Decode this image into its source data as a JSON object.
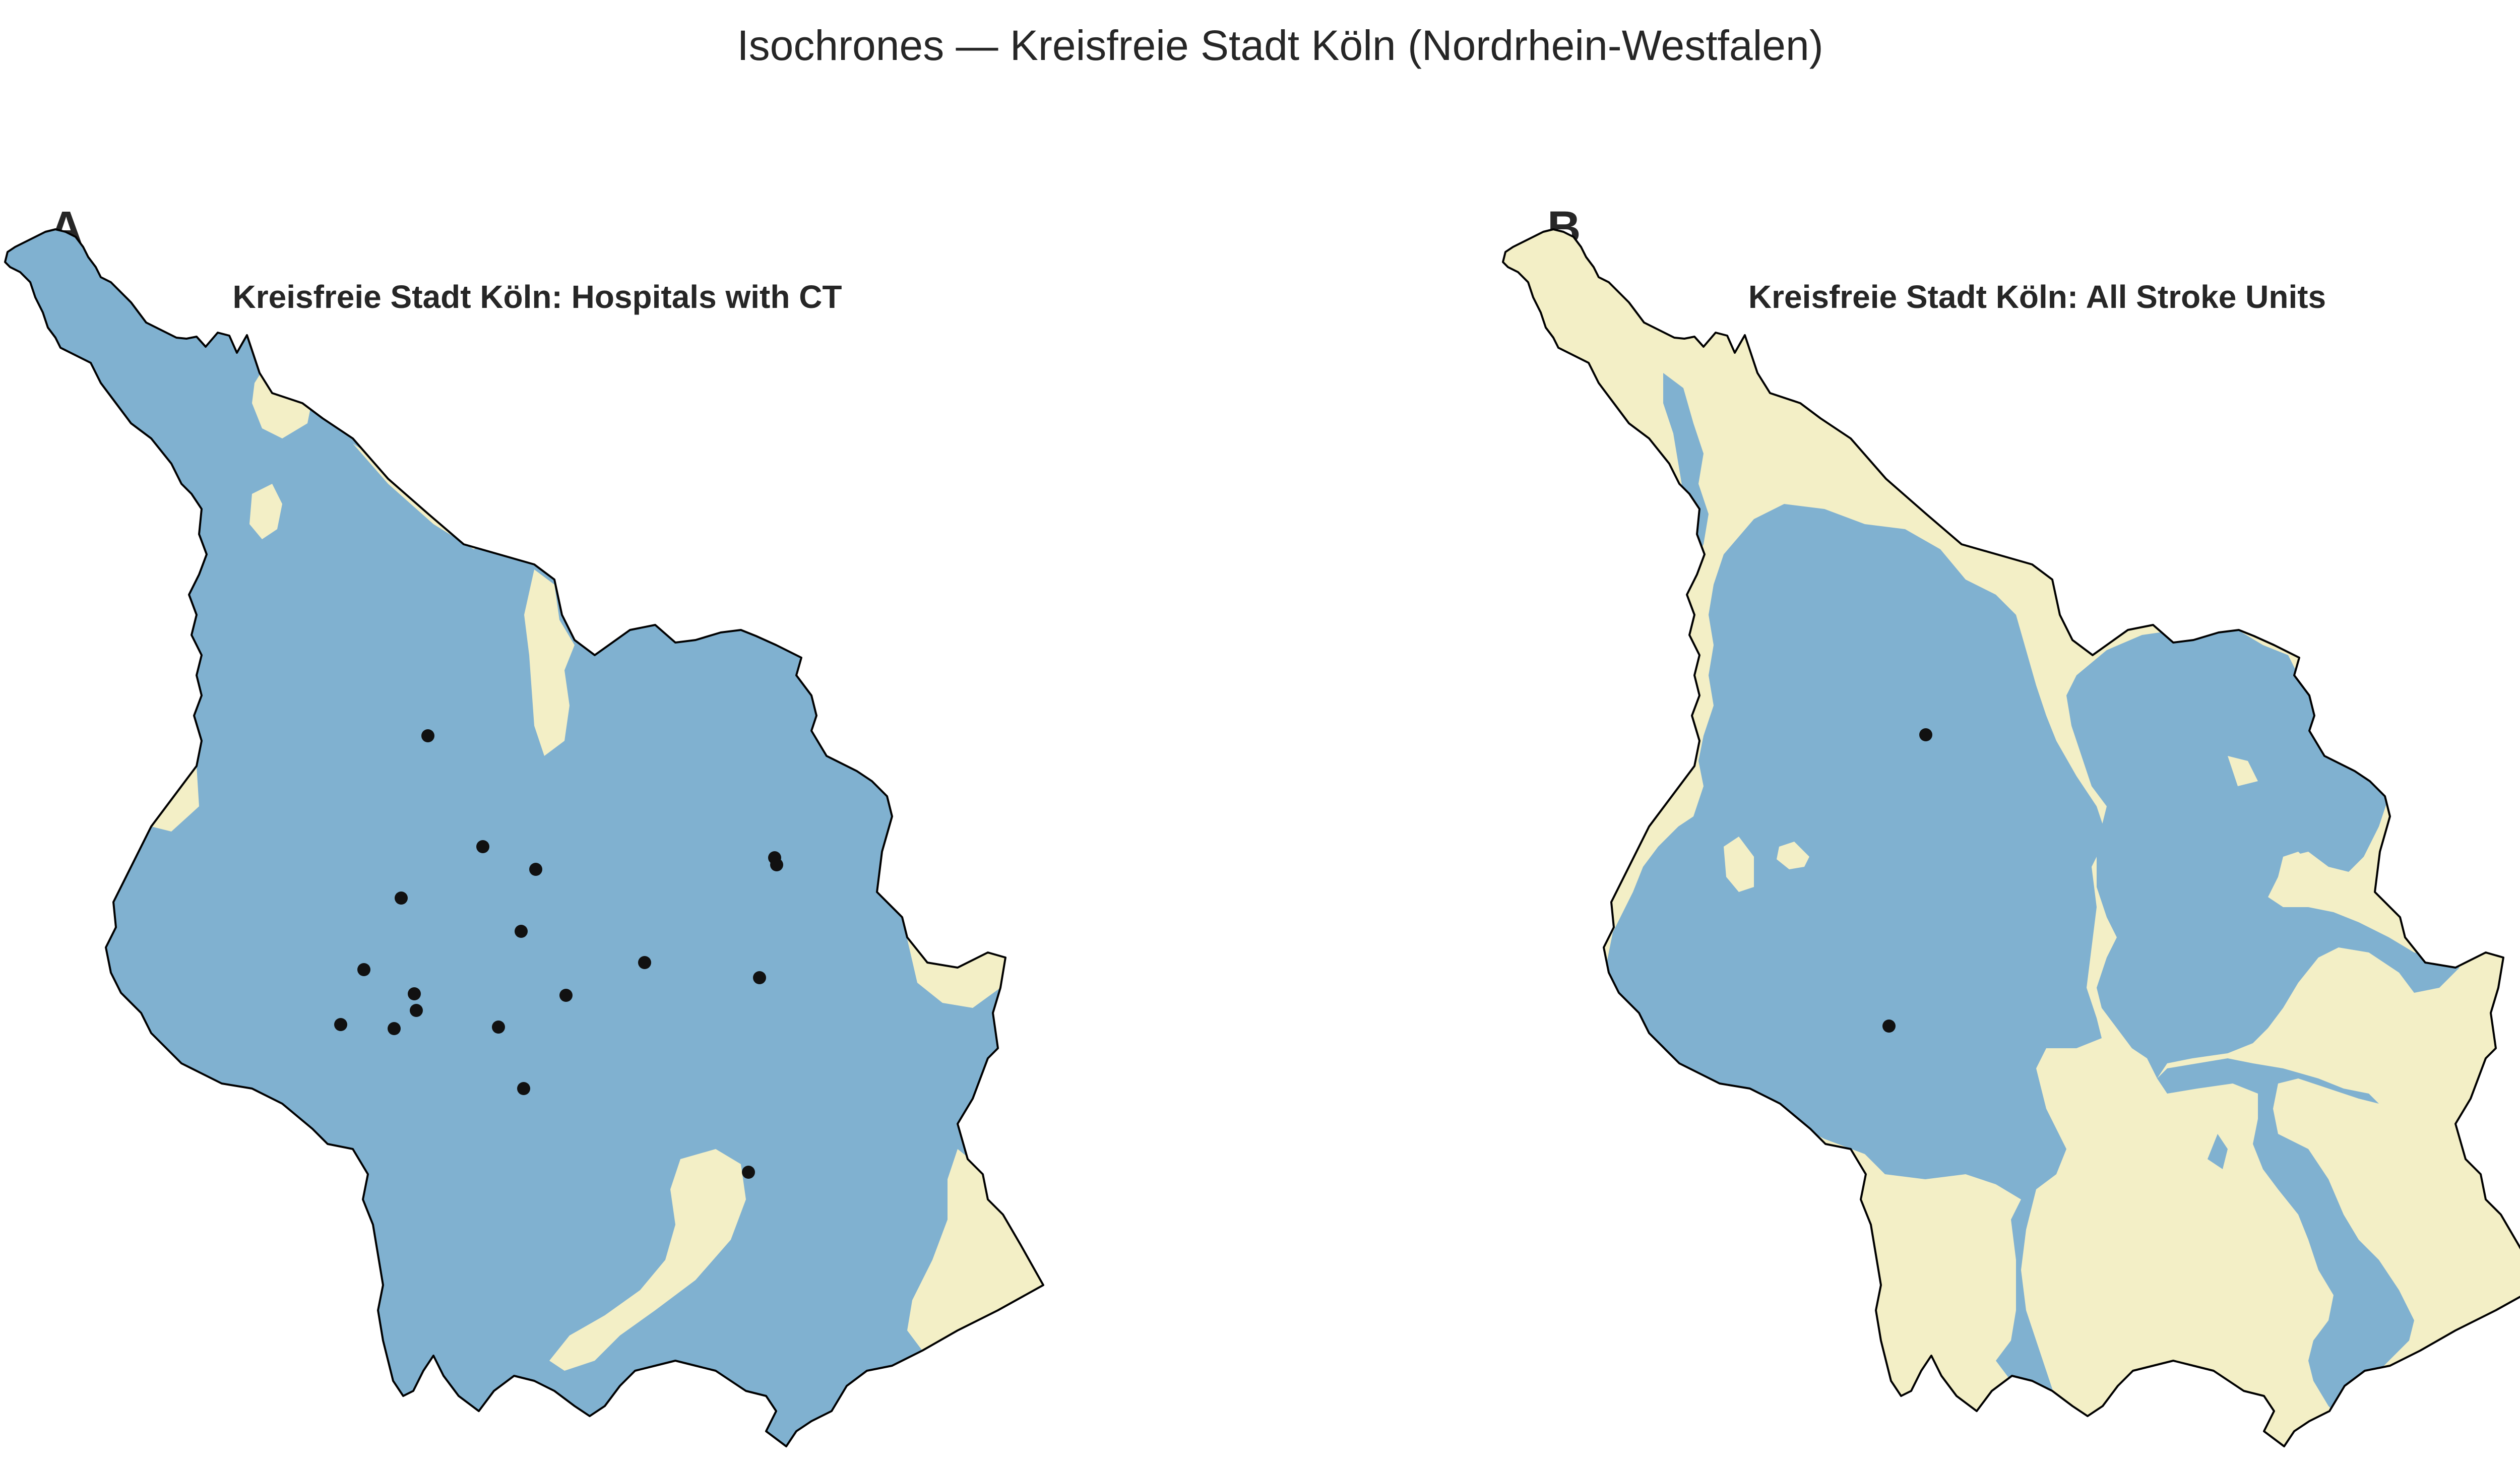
{
  "figure": {
    "title": "Isochrones — Kreisfreie Stadt Köln (Nordrhein-Westfalen)"
  },
  "colors": {
    "covered": "#80b1d0",
    "uncovered": "#f3efc6",
    "border": "#000000",
    "hospital": "#111111"
  },
  "panels": [
    {
      "letter": "A",
      "title": "Kreisfreie Stadt Köln: Hospitals with CT",
      "hospital_count": 17
    },
    {
      "letter": "B",
      "title": "Kreisfreie Stadt Köln: All Stroke Units",
      "hospital_count": 2
    }
  ]
}
